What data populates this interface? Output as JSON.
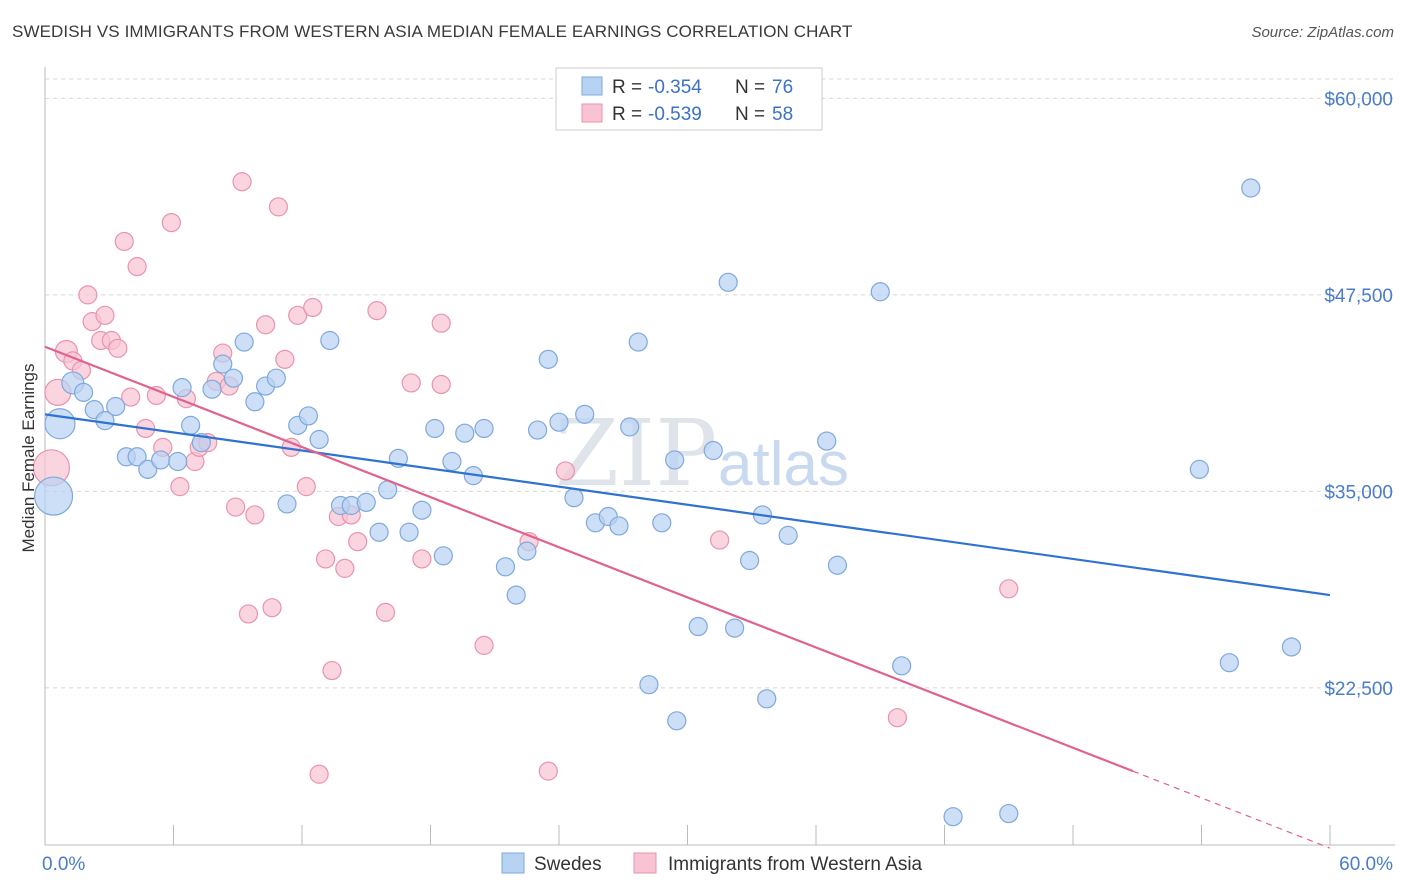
{
  "title": "SWEDISH VS IMMIGRANTS FROM WESTERN ASIA MEDIAN FEMALE EARNINGS CORRELATION CHART",
  "source": "Source: ZipAtlas.com",
  "watermark": {
    "zip": "ZIP",
    "atlas": "atlas"
  },
  "colors": {
    "blue_fill": "#b8d2f2",
    "blue_stroke": "#7fa8dc",
    "blue_line": "#2f72d0",
    "pink_fill": "#f8c3d3",
    "pink_stroke": "#e993ad",
    "pink_line": "#e0628e",
    "grid": "#d8d8d8",
    "tick_text": "#4a7cc9"
  },
  "stats": [
    {
      "r_label": "R =",
      "r_value": "-0.354",
      "n_label": "N =",
      "n_value": "76"
    },
    {
      "r_label": "R =",
      "r_value": "-0.539",
      "n_label": "N =",
      "n_value": "58"
    }
  ],
  "legend": [
    "Swedes",
    "Immigrants from Western Asia"
  ],
  "chart_data": {
    "type": "scatter",
    "title": "SWEDISH VS IMMIGRANTS FROM WESTERN ASIA MEDIAN FEMALE EARNINGS CORRELATION CHART",
    "xlabel": "",
    "ylabel": "Median Female Earnings",
    "xlim": [
      0,
      60
    ],
    "ylim": [
      12500,
      62000
    ],
    "x_tick_labels": [
      "0.0%",
      "60.0%"
    ],
    "y_ticks": [
      22500,
      35000,
      47500,
      60000
    ],
    "y_tick_labels": [
      "$22,500",
      "$35,000",
      "$47,500",
      "$60,000"
    ],
    "grid": true,
    "legend_position": "bottom-center",
    "series": [
      {
        "name": "Swedes",
        "color": "#b8d2f2",
        "trend": {
          "x": [
            0,
            60
          ],
          "y": [
            39900,
            28400
          ]
        },
        "points": [
          [
            0.4,
            34700,
            38
          ],
          [
            0.7,
            39300,
            30
          ],
          [
            1.3,
            41900,
            22
          ],
          [
            1.8,
            41300,
            18
          ],
          [
            2.3,
            40200,
            18
          ],
          [
            2.8,
            39500,
            18
          ],
          [
            3.3,
            40400,
            18
          ],
          [
            3.8,
            37200,
            18
          ],
          [
            4.3,
            37200,
            18
          ],
          [
            4.8,
            36400,
            18
          ],
          [
            5.4,
            37000,
            18
          ],
          [
            6.2,
            36900,
            18
          ],
          [
            6.4,
            41600,
            18
          ],
          [
            6.8,
            39200,
            18
          ],
          [
            7.3,
            38100,
            18
          ],
          [
            7.8,
            41500,
            18
          ],
          [
            8.3,
            43100,
            18
          ],
          [
            8.8,
            42200,
            18
          ],
          [
            9.3,
            44500,
            18
          ],
          [
            9.8,
            40700,
            18
          ],
          [
            10.3,
            41700,
            18
          ],
          [
            10.8,
            42200,
            18
          ],
          [
            11.3,
            34200,
            18
          ],
          [
            11.8,
            39200,
            18
          ],
          [
            12.3,
            39800,
            18
          ],
          [
            12.8,
            38300,
            18
          ],
          [
            13.3,
            44600,
            18
          ],
          [
            13.8,
            34100,
            18
          ],
          [
            14.3,
            34100,
            18
          ],
          [
            15.0,
            34300,
            18
          ],
          [
            15.6,
            32400,
            18
          ],
          [
            16.0,
            35100,
            18
          ],
          [
            16.5,
            37100,
            18
          ],
          [
            17.0,
            32400,
            18
          ],
          [
            17.6,
            33800,
            18
          ],
          [
            18.2,
            39000,
            18
          ],
          [
            18.6,
            30900,
            18
          ],
          [
            19.0,
            36900,
            18
          ],
          [
            19.6,
            38700,
            18
          ],
          [
            20.0,
            36000,
            18
          ],
          [
            20.5,
            39000,
            18
          ],
          [
            21.5,
            30200,
            18
          ],
          [
            22.0,
            28400,
            18
          ],
          [
            22.5,
            31200,
            18
          ],
          [
            23.0,
            38900,
            18
          ],
          [
            23.5,
            43400,
            18
          ],
          [
            24.0,
            39400,
            18
          ],
          [
            24.7,
            34600,
            18
          ],
          [
            25.2,
            39900,
            18
          ],
          [
            25.7,
            33000,
            18
          ],
          [
            26.3,
            33400,
            18
          ],
          [
            26.8,
            32800,
            18
          ],
          [
            27.3,
            39100,
            18
          ],
          [
            27.7,
            44500,
            18
          ],
          [
            28.2,
            22700,
            18
          ],
          [
            28.8,
            33000,
            18
          ],
          [
            29.4,
            37000,
            18
          ],
          [
            29.5,
            20400,
            18
          ],
          [
            30.5,
            26400,
            18
          ],
          [
            31.2,
            37600,
            18
          ],
          [
            31.9,
            48300,
            18
          ],
          [
            32.2,
            26300,
            18
          ],
          [
            32.9,
            30600,
            18
          ],
          [
            33.7,
            21800,
            18
          ],
          [
            33.5,
            33500,
            18
          ],
          [
            34.7,
            32200,
            18
          ],
          [
            36.5,
            38200,
            18
          ],
          [
            37.0,
            30300,
            18
          ],
          [
            39.0,
            47700,
            18
          ],
          [
            40.0,
            23900,
            18
          ],
          [
            42.4,
            14300,
            18
          ],
          [
            45.0,
            14500,
            18
          ],
          [
            53.9,
            36400,
            18
          ],
          [
            55.3,
            24100,
            18
          ],
          [
            56.3,
            54300,
            18
          ],
          [
            58.2,
            25100,
            18
          ]
        ]
      },
      {
        "name": "Immigrants from Western Asia",
        "color": "#f8c3d3",
        "trend": {
          "x": [
            0,
            50.8
          ],
          "y": [
            44200,
            17200
          ]
        },
        "trend_dashed": {
          "x": [
            50.8,
            60
          ],
          "y": [
            17200,
            12300
          ]
        },
        "points": [
          [
            0.3,
            36500,
            36
          ],
          [
            0.6,
            41300,
            26
          ],
          [
            1.0,
            43900,
            22
          ],
          [
            1.3,
            43300,
            18
          ],
          [
            1.7,
            42700,
            18
          ],
          [
            2.0,
            47500,
            18
          ],
          [
            2.2,
            45800,
            18
          ],
          [
            2.6,
            44600,
            18
          ],
          [
            2.8,
            46200,
            18
          ],
          [
            3.1,
            44600,
            18
          ],
          [
            3.4,
            44100,
            18
          ],
          [
            3.7,
            50900,
            18
          ],
          [
            4.0,
            41000,
            18
          ],
          [
            4.3,
            49300,
            18
          ],
          [
            4.7,
            39000,
            18
          ],
          [
            5.2,
            41100,
            18
          ],
          [
            5.5,
            37800,
            18
          ],
          [
            5.9,
            52100,
            18
          ],
          [
            6.3,
            35300,
            18
          ],
          [
            6.6,
            40900,
            18
          ],
          [
            7.0,
            36900,
            18
          ],
          [
            7.2,
            37800,
            18
          ],
          [
            7.6,
            38100,
            18
          ],
          [
            8.0,
            42000,
            18
          ],
          [
            8.3,
            43800,
            18
          ],
          [
            8.6,
            41700,
            18
          ],
          [
            8.9,
            34000,
            18
          ],
          [
            9.2,
            54700,
            18
          ],
          [
            9.5,
            27200,
            18
          ],
          [
            9.8,
            33500,
            18
          ],
          [
            10.3,
            45600,
            18
          ],
          [
            10.6,
            27600,
            18
          ],
          [
            10.9,
            53100,
            18
          ],
          [
            11.2,
            43400,
            18
          ],
          [
            11.5,
            37800,
            18
          ],
          [
            11.8,
            46200,
            18
          ],
          [
            12.2,
            35300,
            18
          ],
          [
            12.5,
            46700,
            18
          ],
          [
            12.8,
            17000,
            18
          ],
          [
            13.1,
            30700,
            18
          ],
          [
            13.4,
            23600,
            18
          ],
          [
            13.7,
            33400,
            18
          ],
          [
            14.0,
            30100,
            18
          ],
          [
            14.3,
            33500,
            18
          ],
          [
            14.6,
            31800,
            18
          ],
          [
            15.5,
            46500,
            18
          ],
          [
            15.9,
            27300,
            18
          ],
          [
            17.1,
            41900,
            18
          ],
          [
            17.6,
            30700,
            18
          ],
          [
            18.5,
            41800,
            18
          ],
          [
            18.5,
            45700,
            18
          ],
          [
            20.5,
            25200,
            18
          ],
          [
            22.6,
            31800,
            18
          ],
          [
            23.5,
            17200,
            18
          ],
          [
            24.3,
            36300,
            18
          ],
          [
            31.5,
            31900,
            18
          ],
          [
            39.8,
            20600,
            18
          ],
          [
            45.0,
            28800,
            18
          ]
        ]
      }
    ]
  }
}
